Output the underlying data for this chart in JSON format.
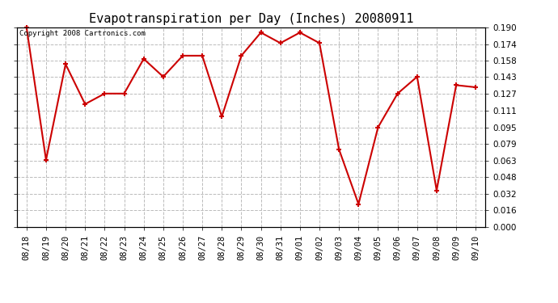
{
  "title": "Evapotranspiration per Day (Inches) 20080911",
  "copyright_text": "Copyright 2008 Cartronics.com",
  "dates": [
    "08/18",
    "08/19",
    "08/20",
    "08/21",
    "08/22",
    "08/23",
    "08/24",
    "08/25",
    "08/26",
    "08/27",
    "08/28",
    "08/29",
    "08/30",
    "08/31",
    "09/01",
    "09/02",
    "09/03",
    "09/04",
    "09/05",
    "09/06",
    "09/07",
    "09/08",
    "09/09",
    "09/10"
  ],
  "values": [
    0.19,
    0.064,
    0.155,
    0.117,
    0.127,
    0.127,
    0.16,
    0.143,
    0.163,
    0.163,
    0.105,
    0.163,
    0.185,
    0.175,
    0.185,
    0.175,
    0.074,
    0.022,
    0.095,
    0.127,
    0.143,
    0.035,
    0.135,
    0.133
  ],
  "ylim": [
    0.0,
    0.19
  ],
  "yticks": [
    0.0,
    0.016,
    0.032,
    0.048,
    0.063,
    0.079,
    0.095,
    0.111,
    0.127,
    0.143,
    0.158,
    0.174,
    0.19
  ],
  "line_color": "#cc0000",
  "marker": "+",
  "marker_color": "#cc0000",
  "marker_size": 5,
  "line_width": 1.5,
  "bg_color": "#ffffff",
  "plot_bg_color": "#ffffff",
  "grid_color": "#bbbbbb",
  "grid_style": "--",
  "title_fontsize": 11,
  "tick_fontsize": 7.5,
  "copyright_fontsize": 6.5
}
